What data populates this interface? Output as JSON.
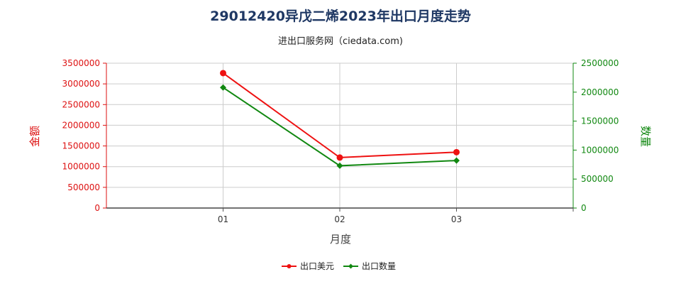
{
  "chart_data": {
    "type": "line",
    "title": "29012420异戊二烯2023年出口月度走势",
    "subtitle": "进出口服务网（ciedata.com)",
    "xlabel": "月度",
    "ylabel_left": "金额",
    "ylabel_right": "数量",
    "categories": [
      "01",
      "02",
      "03"
    ],
    "ylim_left": [
      0,
      3500000
    ],
    "ylim_right": [
      0,
      2500000
    ],
    "yticks_left": [
      "0",
      "500000",
      "1000000",
      "1500000",
      "2000000",
      "2500000",
      "3000000",
      "3500000"
    ],
    "yticks_right": [
      "0",
      "500000",
      "1000000",
      "1500000",
      "2000000",
      "2500000"
    ],
    "grid": true,
    "legend_position": "bottom",
    "series": [
      {
        "name": "出口美元",
        "axis": "left",
        "color": "#ee1111",
        "values": [
          3260000,
          1220000,
          1350000
        ]
      },
      {
        "name": "出口数量",
        "axis": "right",
        "color": "#118811",
        "values": [
          2080000,
          730000,
          820000
        ]
      }
    ],
    "colors": {
      "left_axis": "#dd1111",
      "right_axis": "#118811"
    }
  }
}
